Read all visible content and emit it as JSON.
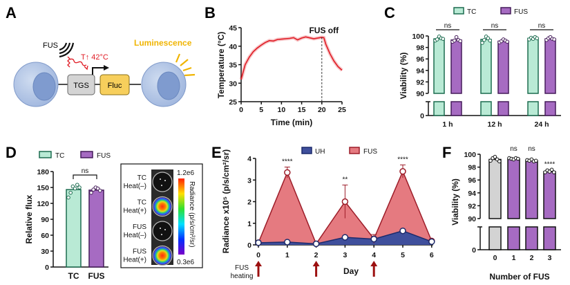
{
  "panels": {
    "a": "A",
    "b": "B",
    "c": "C",
    "d": "D",
    "e": "E",
    "f": "F"
  },
  "diagram": {
    "fus": "FUS",
    "heat": "T↑ 42°C",
    "tgs": "TGS",
    "fluc": "Fluc",
    "luminescence": "Luminescence"
  },
  "imaging": {
    "rows": [
      [
        "TC",
        "Heat(–)"
      ],
      [
        "TC",
        "Heat(+)"
      ],
      [
        "FUS",
        "Heat(–)"
      ],
      [
        "FUS",
        "Heat(+)"
      ]
    ],
    "scale_max": "1.2e6",
    "scale_min": "0.3e6",
    "scale_label": "Radiance (p/s/cm²/sr)"
  },
  "colors": {
    "tc_fill": "#b9ead5",
    "tc_stroke": "#1b6b4f",
    "fus_fill": "#a66bc2",
    "fus_stroke": "#451c5a",
    "control_fill": "#d3d3d3",
    "temp_line": "#e01b24",
    "e_fus_fill": "#e57a80",
    "e_fus_stroke": "#9c1c28",
    "e_uh_fill": "#3f4f9c",
    "e_uh_stroke": "#1c2a6b",
    "arrow": "#9c1010",
    "luminescence": "#f0b400"
  },
  "chart_data": [
    {
      "panel": "B",
      "type": "line",
      "xlabel": "Time (min)",
      "ylabel": "Temperature (°C)",
      "xlim": [
        0,
        25
      ],
      "ylim": [
        25,
        45
      ],
      "xticks": [
        "0",
        "5",
        "10",
        "15",
        "20",
        "25"
      ],
      "yticks": [
        "25",
        "30",
        "35",
        "40",
        "45"
      ],
      "x": [
        0,
        0.5,
        1,
        2,
        3,
        4,
        5,
        6,
        7,
        8,
        9,
        10,
        12,
        13,
        14,
        15,
        16,
        18,
        20,
        20.5,
        21,
        22,
        23,
        24,
        25
      ],
      "y": [
        31,
        33,
        35,
        37,
        38.5,
        39.5,
        40.3,
        41,
        41.5,
        41.4,
        41.8,
        41.9,
        42.1,
        42.3,
        41.7,
        42.2,
        42.5,
        42,
        42.4,
        42.3,
        40.5,
        38,
        36,
        34.5,
        33.5
      ],
      "annotation": {
        "x": 20,
        "text": "FUS off"
      }
    },
    {
      "panel": "C",
      "type": "bar",
      "ylabel": "Viability (%)",
      "yticks": [
        "0",
        "90",
        "92",
        "94",
        "96",
        "98",
        "100"
      ],
      "axis_break": [
        0,
        90
      ],
      "categories": [
        "1 h",
        "12 h",
        "24 h"
      ],
      "series": [
        {
          "name": "TC",
          "values": [
            99.5,
            99.4,
            99.6
          ],
          "points": [
            [
              99.2,
              99.4,
              99.9,
              99.6,
              99.5
            ],
            [
              98.8,
              99.3,
              99.9,
              99.6,
              99.2
            ],
            [
              99.4,
              99.7,
              99.5,
              99.8,
              99.6
            ]
          ]
        },
        {
          "name": "FUS",
          "values": [
            99.3,
            99.1,
            99.5
          ],
          "points": [
            [
              99.0,
              99.2,
              99.8,
              99.3,
              99.1
            ],
            [
              98.9,
              99.1,
              99.4,
              99.2,
              99.0
            ],
            [
              99.3,
              99.6,
              99.8,
              99.5,
              99.4
            ]
          ]
        }
      ],
      "annotations": [
        "ns",
        "ns",
        "ns"
      ]
    },
    {
      "panel": "D",
      "type": "bar",
      "ylabel": "Relative flux",
      "ylim": [
        0,
        180
      ],
      "yticks": [
        "0",
        "30",
        "60",
        "90",
        "120",
        "150",
        "180"
      ],
      "categories": [
        "TC",
        "FUS"
      ],
      "values": [
        146,
        145
      ],
      "points": [
        [
          131,
          140,
          152,
          148,
          155,
          150
        ],
        [
          140,
          146,
          150,
          148,
          144
        ]
      ],
      "legend": [
        "TC",
        "FUS"
      ],
      "annotations": [
        "ns"
      ]
    },
    {
      "panel": "E",
      "type": "area",
      "xlabel": "Day",
      "ylabel": "Radiance x10⁵ (p/s/cm²/sr)",
      "ylim": [
        0,
        4
      ],
      "yticks": [
        "0",
        "1",
        "2",
        "3",
        "4"
      ],
      "x": [
        0,
        1,
        2,
        3,
        4,
        5,
        6
      ],
      "series": [
        {
          "name": "UH",
          "values": [
            0.1,
            0.13,
            0.05,
            0.35,
            0.27,
            0.65,
            0.15
          ],
          "errors": [
            0,
            0,
            0,
            0,
            0.1,
            0,
            0
          ]
        },
        {
          "name": "FUS",
          "values": [
            0.1,
            3.35,
            0.05,
            2.0,
            0.28,
            3.4,
            0.18
          ],
          "errors": [
            0,
            0.25,
            0,
            0.77,
            0.2,
            0.3,
            0
          ]
        }
      ],
      "annotations": [
        "",
        "****",
        "",
        "**",
        "",
        "****",
        ""
      ],
      "heating_days": [
        0,
        2,
        4
      ],
      "heating_label": [
        "FUS",
        "heating"
      ]
    },
    {
      "panel": "F",
      "type": "bar",
      "xlabel": "Number of FUS",
      "ylabel": "Viability (%)",
      "yticks": [
        "0",
        "90",
        "92",
        "94",
        "96",
        "98",
        "100"
      ],
      "axis_break": [
        0,
        90
      ],
      "categories": [
        "0",
        "1",
        "2",
        "3"
      ],
      "values": [
        99.2,
        99.3,
        99.0,
        97.3
      ],
      "points": [
        [
          99.0,
          99.4,
          99.6,
          99.2,
          98.9
        ],
        [
          99.4,
          99.3,
          99.2,
          99.4,
          99.3
        ],
        [
          99.1,
          99.0,
          99.2,
          98.9,
          99.0
        ],
        [
          97.2,
          97.5,
          97.3,
          97.6,
          97.2
        ]
      ],
      "annotations": [
        "",
        "ns",
        "ns",
        "****"
      ]
    }
  ]
}
